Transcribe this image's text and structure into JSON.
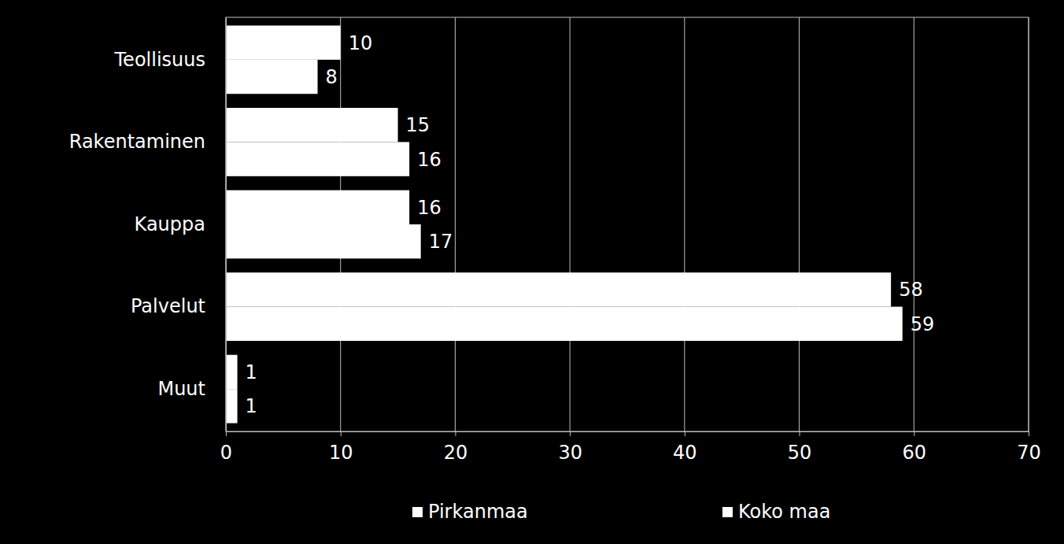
{
  "chart_data": {
    "type": "bar",
    "orientation": "horizontal",
    "categories": [
      "Teollisuus",
      "Rakentaminen",
      "Kauppa",
      "Palvelut",
      "Muut"
    ],
    "series": [
      {
        "name": "Pirkanmaa",
        "color": "#ffffff",
        "values": [
          10,
          15,
          16,
          58,
          1
        ]
      },
      {
        "name": "Koko maa",
        "color": "#ffffff",
        "values": [
          8,
          16,
          17,
          59,
          1
        ]
      }
    ],
    "xlim": [
      0,
      70
    ],
    "xticks": [
      0,
      10,
      20,
      30,
      40,
      50,
      60,
      70
    ],
    "grid": true,
    "data_labels": true,
    "legend": "bottom"
  }
}
